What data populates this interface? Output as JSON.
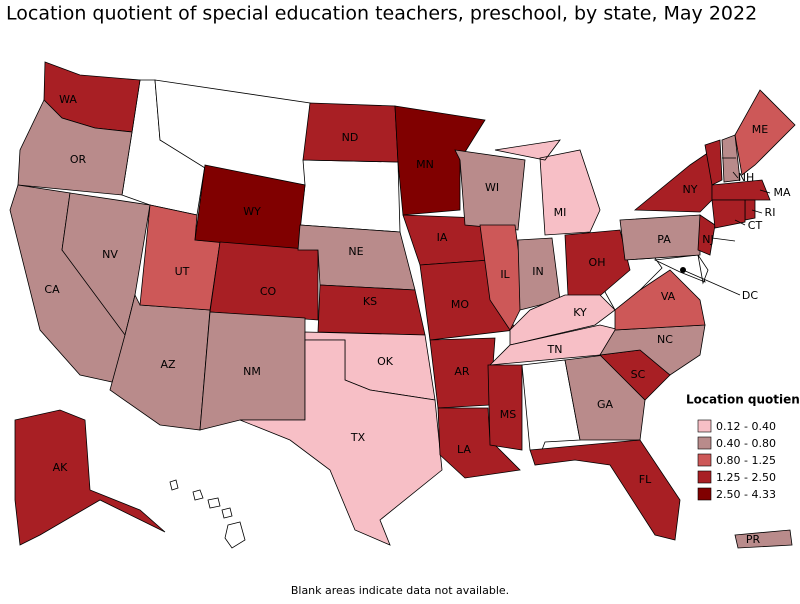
{
  "title": "Location quotient of special education teachers, preschool, by state, May 2022",
  "legend": {
    "title": "Location quotient",
    "items": [
      {
        "label": "0.12 - 0.40",
        "color": "#f7bfc6"
      },
      {
        "label": "0.40 - 0.80",
        "color": "#b98b8b"
      },
      {
        "label": "0.80 - 1.25",
        "color": "#cd5858"
      },
      {
        "label": "1.25 - 2.50",
        "color": "#a81f24"
      },
      {
        "label": "2.50 - 4.33",
        "color": "#800000"
      }
    ]
  },
  "states": [
    {
      "abbr": "WA",
      "bin": 3
    },
    {
      "abbr": "OR",
      "bin": 1
    },
    {
      "abbr": "CA",
      "bin": 1
    },
    {
      "abbr": "NV",
      "bin": 1
    },
    {
      "abbr": "AZ",
      "bin": 1
    },
    {
      "abbr": "UT",
      "bin": 2
    },
    {
      "abbr": "WY",
      "bin": 4
    },
    {
      "abbr": "CO",
      "bin": 3
    },
    {
      "abbr": "NM",
      "bin": 1
    },
    {
      "abbr": "ND",
      "bin": 3
    },
    {
      "abbr": "NE",
      "bin": 1
    },
    {
      "abbr": "KS",
      "bin": 3
    },
    {
      "abbr": "OK",
      "bin": 0
    },
    {
      "abbr": "TX",
      "bin": 0
    },
    {
      "abbr": "MN",
      "bin": 4
    },
    {
      "abbr": "IA",
      "bin": 3
    },
    {
      "abbr": "MO",
      "bin": 3
    },
    {
      "abbr": "AR",
      "bin": 3
    },
    {
      "abbr": "LA",
      "bin": 3
    },
    {
      "abbr": "WI",
      "bin": 1
    },
    {
      "abbr": "IL",
      "bin": 2
    },
    {
      "abbr": "MI",
      "bin": 0
    },
    {
      "abbr": "IN",
      "bin": 1
    },
    {
      "abbr": "OH",
      "bin": 3
    },
    {
      "abbr": "KY",
      "bin": 0
    },
    {
      "abbr": "TN",
      "bin": 0
    },
    {
      "abbr": "MS",
      "bin": 3
    },
    {
      "abbr": "GA",
      "bin": 1
    },
    {
      "abbr": "FL",
      "bin": 3
    },
    {
      "abbr": "SC",
      "bin": 3
    },
    {
      "abbr": "NC",
      "bin": 1
    },
    {
      "abbr": "VA",
      "bin": 2
    },
    {
      "abbr": "PA",
      "bin": 1
    },
    {
      "abbr": "NY",
      "bin": 3
    },
    {
      "abbr": "NJ",
      "bin": 3
    },
    {
      "abbr": "VT",
      "bin": 3
    },
    {
      "abbr": "NH",
      "bin": 1
    },
    {
      "abbr": "ME",
      "bin": 2
    },
    {
      "abbr": "MA",
      "bin": 3
    },
    {
      "abbr": "RI",
      "bin": 3
    },
    {
      "abbr": "CT",
      "bin": 3
    },
    {
      "abbr": "AK",
      "bin": 3
    },
    {
      "abbr": "PR",
      "bin": 1
    },
    {
      "abbr": "DC"
    }
  ],
  "footnote": "Blank areas indicate data not available."
}
